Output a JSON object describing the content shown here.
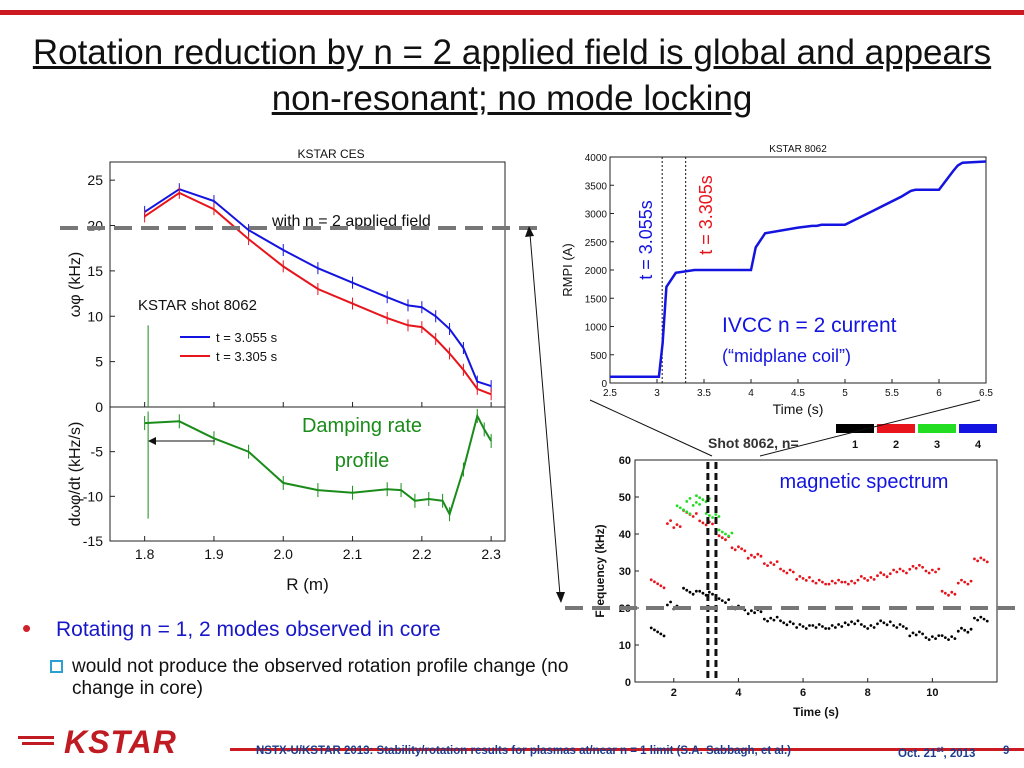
{
  "slide": {
    "title": "Rotation reduction by n = 2 applied field is global and appears non-resonant; no mode locking",
    "bullet": "Rotating n = 1, 2 modes observed in core",
    "sub_bullet": "would not produce the observed rotation profile change (no change in core)",
    "footer": "NSTX-U/KSTAR 2013: Stability/rotation results for plasmas at/near  n = 1 limit (S.A. Sabbagh, et al.)",
    "date_main": "Oct. 21",
    "date_sup": "st",
    "date_year": ", 2013",
    "page": "9",
    "logo_text": "KSTAR"
  },
  "colors": {
    "red": "#e8141c",
    "blue": "#1414e0",
    "green": "#1a8c1a",
    "accent": "#cc1a22",
    "navy": "#1a3c8c"
  },
  "annotations": {
    "with_field": "with n = 2 applied field",
    "shot": "KSTAR shot 8062",
    "damping": "Damping rate\nprofile",
    "ivcc_line1": "IVCC n = 2 current",
    "ivcc_line2": "(“midplane coil”)",
    "t1": "t = 3.055s",
    "t2": "t = 3.305s",
    "spectrum": "magnetic spectrum"
  },
  "chart_data": [
    {
      "type": "line",
      "title": "KSTAR CES",
      "xlabel": "",
      "ylabel": "ωφ (kHz)",
      "xlim": [
        1.75,
        2.32
      ],
      "ylim": [
        0,
        27
      ],
      "yticks": [
        "0",
        "5",
        "10",
        "15",
        "20",
        "25"
      ],
      "legend": "center-left",
      "series": [
        {
          "name": "t = 3.055 s",
          "color": "#1414e0",
          "x": [
            1.8,
            1.85,
            1.9,
            1.95,
            2.0,
            2.05,
            2.1,
            2.15,
            2.18,
            2.2,
            2.22,
            2.24,
            2.26,
            2.28,
            2.3
          ],
          "y": [
            21.5,
            24.0,
            22.7,
            19.5,
            17.3,
            15.3,
            13.7,
            12.1,
            11.2,
            11.0,
            10.0,
            8.6,
            6.5,
            2.8,
            2.3
          ]
        },
        {
          "name": "t = 3.305 s",
          "color": "#e8141c",
          "x": [
            1.8,
            1.85,
            1.9,
            1.95,
            2.0,
            2.05,
            2.1,
            2.15,
            2.18,
            2.2,
            2.22,
            2.24,
            2.26,
            2.28,
            2.3
          ],
          "y": [
            21.0,
            23.6,
            21.8,
            18.5,
            15.5,
            13.0,
            11.4,
            9.8,
            9.0,
            8.8,
            7.5,
            5.9,
            4.1,
            2.0,
            1.4
          ]
        }
      ]
    },
    {
      "type": "line",
      "title": "",
      "xlabel": "R (m)",
      "ylabel": "dωφ/dt (kHz/s)",
      "xlim": [
        1.75,
        2.32
      ],
      "ylim": [
        -15,
        0
      ],
      "xticks": [
        "1.8",
        "1.9",
        "2.0",
        "2.1",
        "2.2",
        "2.3"
      ],
      "yticks": [
        "0",
        "-5",
        "-10",
        "-15"
      ],
      "series": [
        {
          "name": "damping rate",
          "color": "#1a8c1a",
          "x": [
            1.8,
            1.85,
            1.9,
            1.95,
            2.0,
            2.05,
            2.1,
            2.15,
            2.17,
            2.19,
            2.21,
            2.23,
            2.24,
            2.26,
            2.28,
            2.29,
            2.3
          ],
          "y": [
            -1.8,
            -1.6,
            -3.5,
            -5.0,
            -8.5,
            -9.3,
            -9.6,
            -9.2,
            -9.3,
            -10.5,
            -10.3,
            -10.5,
            -12.0,
            -7.0,
            -1.0,
            -2.5,
            -3.8
          ]
        }
      ]
    },
    {
      "type": "line",
      "title": "KSTAR 8062",
      "xlabel": "Time (s)",
      "ylabel": "RMPI (A)",
      "xlim": [
        2.5,
        6.5
      ],
      "ylim": [
        0,
        4000
      ],
      "xticks": [
        "2.5",
        "3",
        "3.5",
        "4",
        "4.5",
        "5",
        "5.5",
        "6",
        "6.5"
      ],
      "yticks": [
        "0",
        "500",
        "1000",
        "1500",
        "2000",
        "2500",
        "3000",
        "3500",
        "4000"
      ],
      "vlines": [
        3.055,
        3.305
      ],
      "series": [
        {
          "name": "RMPI",
          "color": "#1414e0",
          "x": [
            2.5,
            3.02,
            3.06,
            3.1,
            3.2,
            3.4,
            3.9,
            4.0,
            4.05,
            4.15,
            4.5,
            4.65,
            4.7,
            4.75,
            4.85,
            5.0,
            5.3,
            5.6,
            5.7,
            5.75,
            5.8,
            6.0,
            6.15,
            6.2,
            6.25,
            6.5
          ],
          "y": [
            110,
            110,
            700,
            1700,
            1950,
            2000,
            2000,
            2000,
            2400,
            2650,
            2750,
            2780,
            2780,
            2800,
            2800,
            2800,
            3050,
            3300,
            3400,
            3420,
            3420,
            3420,
            3750,
            3850,
            3900,
            3920
          ]
        }
      ]
    },
    {
      "type": "scatter",
      "title": "Shot 8062, n=",
      "xlabel": "Time (s)",
      "ylabel": "Frequency (kHz)",
      "xlim": [
        0.8,
        12.0
      ],
      "ylim": [
        0,
        60
      ],
      "xticks": [
        "2",
        "4",
        "6",
        "8",
        "10"
      ],
      "yticks": [
        "0",
        "10",
        "20",
        "30",
        "40",
        "50",
        "60"
      ],
      "legend_labels": [
        "1",
        "2",
        "3",
        "4"
      ],
      "legend_colors": [
        "#000000",
        "#e8141c",
        "#22dd22",
        "#1414e0"
      ],
      "vlines": [
        3.055,
        3.305
      ],
      "series": [
        {
          "name": "n=1",
          "color": "#000000",
          "x": [
            1.5,
            2.0,
            2.5,
            3.0,
            3.5,
            4.0,
            4.5,
            5.0,
            5.5,
            6.0,
            6.5,
            7.0,
            7.5,
            8.0,
            8.5,
            9.0,
            9.5,
            10.0,
            10.5,
            11.0,
            11.5
          ],
          "y": [
            13,
            20,
            24,
            24,
            22,
            20,
            19,
            17,
            16,
            15,
            15,
            15,
            16,
            15,
            16,
            15,
            13,
            12,
            12,
            14,
            17
          ]
        },
        {
          "name": "n=2",
          "color": "#e8141c",
          "x": [
            1.5,
            2.0,
            2.5,
            3.0,
            3.5,
            4.0,
            4.5,
            5.0,
            5.5,
            6.0,
            6.5,
            7.0,
            7.5,
            8.0,
            8.5,
            9.0,
            9.5,
            10.0,
            10.5,
            11.0,
            11.5
          ],
          "y": [
            26,
            42,
            45,
            43,
            39,
            36,
            34,
            32,
            30,
            28,
            27,
            27,
            27,
            28,
            29,
            30,
            31,
            30,
            24,
            27,
            33
          ]
        },
        {
          "name": "n=3",
          "color": "#22dd22",
          "x": [
            2.3,
            2.6,
            2.9,
            3.2,
            3.6
          ],
          "y": [
            46,
            48,
            49,
            45,
            40
          ]
        }
      ]
    }
  ]
}
